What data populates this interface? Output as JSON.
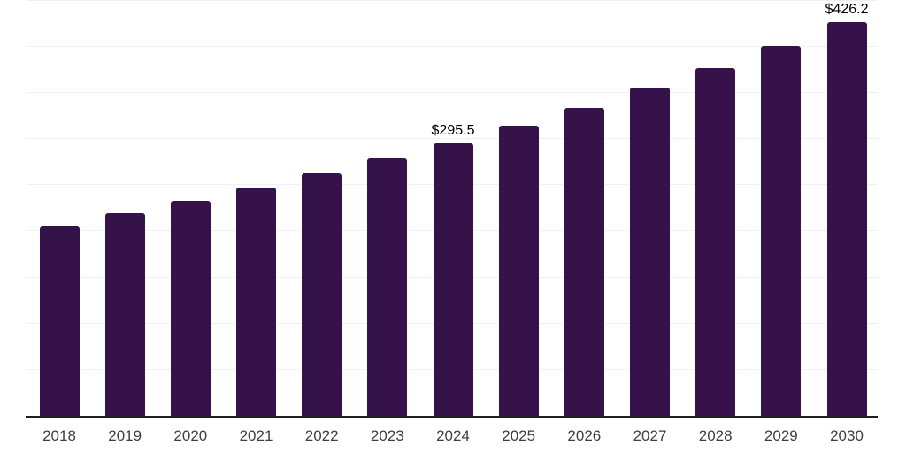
{
  "chart_data": {
    "type": "bar",
    "title": "",
    "xlabel": "",
    "ylabel": "",
    "categories": [
      "2018",
      "2019",
      "2020",
      "2021",
      "2022",
      "2023",
      "2024",
      "2025",
      "2026",
      "2027",
      "2028",
      "2029",
      "2030"
    ],
    "values": [
      205.5,
      219.5,
      232.5,
      247.5,
      263.0,
      279.0,
      295.5,
      314.0,
      334.0,
      355.5,
      377.0,
      401.0,
      426.2
    ],
    "annotations": [
      {
        "index": 6,
        "text": "$295.5"
      },
      {
        "index": 12,
        "text": "$426.2"
      }
    ],
    "ylim": [
      0,
      450
    ],
    "gridline_step": 50,
    "grid": "horizontal-only",
    "y_axis_tick_labels": "none",
    "legend": "none",
    "colors": {
      "bar": "#351249",
      "axis": "#1f1f1f",
      "gridline": "#f0f0f0",
      "tick_label": "#3f3f3f",
      "annotation": "#000000"
    }
  }
}
